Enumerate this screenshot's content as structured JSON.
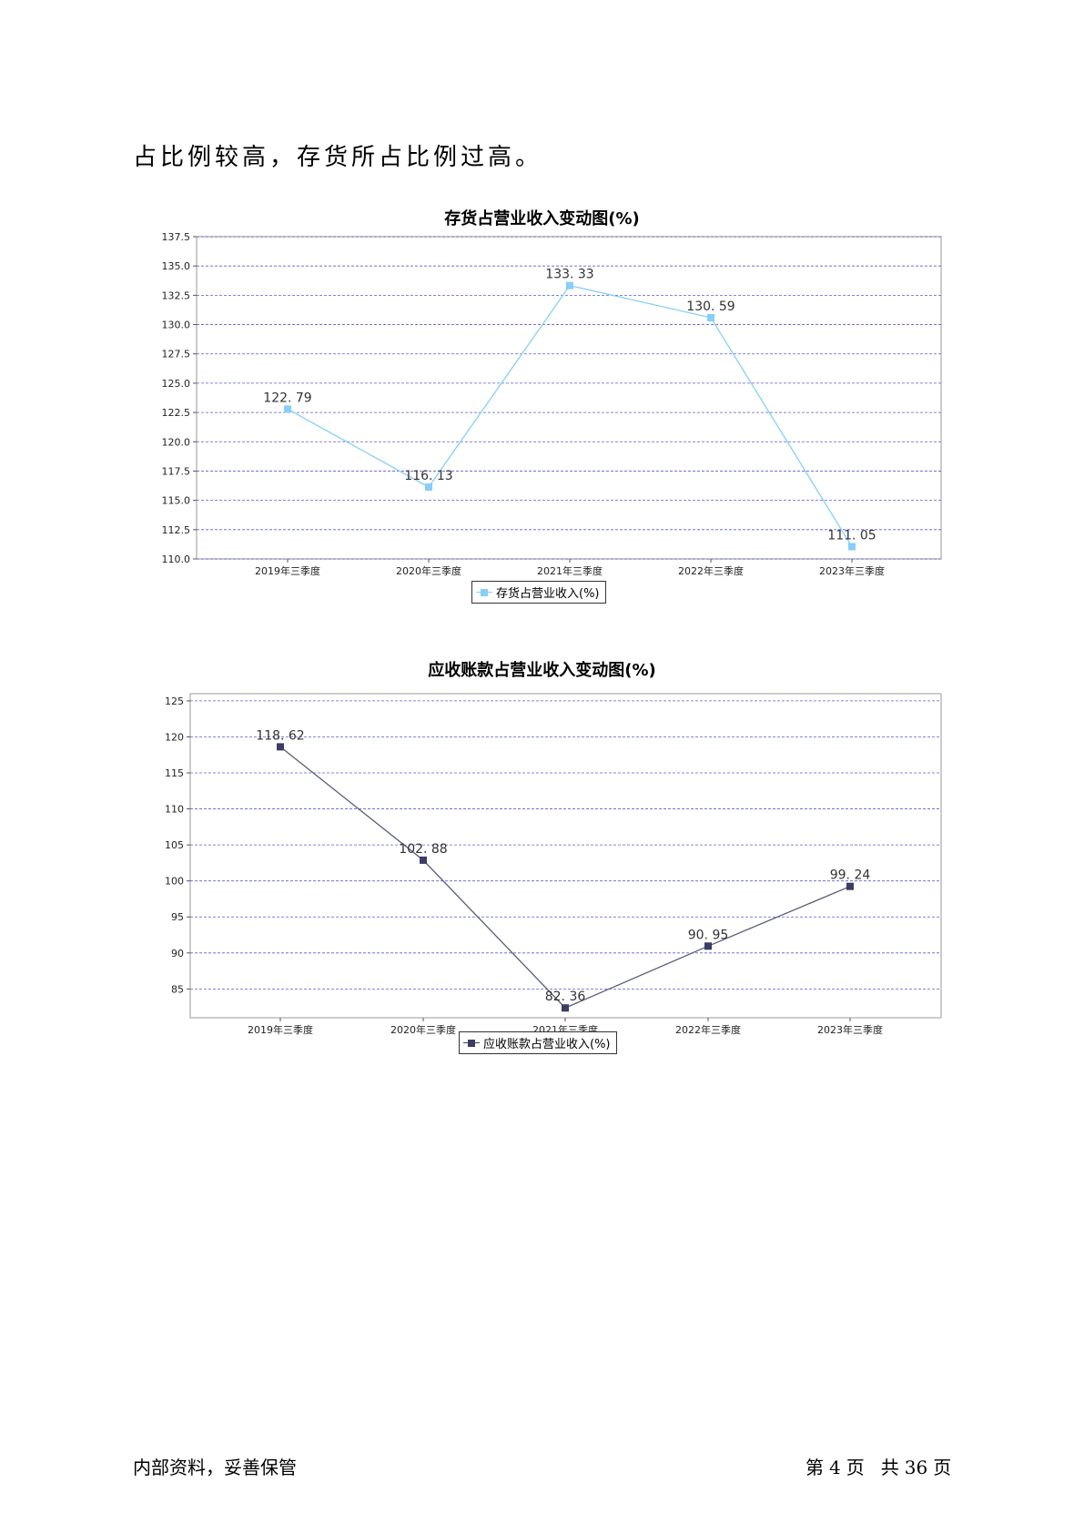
{
  "intro_text": "占比例较高，存货所占比例过高。",
  "charts": [
    {
      "title": "存货占营业收入变动图(%)",
      "legend": "存货占营业收入(%)",
      "color": "#87cefa",
      "line_color": "#87cefa",
      "yticks": [
        "110.0",
        "112.5",
        "115.0",
        "117.5",
        "120.0",
        "122.5",
        "125.0",
        "127.5",
        "130.0",
        "132.5",
        "135.0",
        "137.5"
      ],
      "ylim": [
        110.0,
        137.5
      ],
      "categories": [
        "2019年三季度",
        "2020年三季度",
        "2021年三季度",
        "2022年三季度",
        "2023年三季度"
      ],
      "labels": [
        "122. 79",
        "116. 13",
        "133. 33",
        "130. 59",
        "111. 05"
      ]
    },
    {
      "title": "应收账款占营业收入变动图(%)",
      "legend": "应收账款占营业收入(%)",
      "color": "#3c3c64",
      "line_color": "#5a5a7a",
      "yticks": [
        "85",
        "90",
        "95",
        "100",
        "105",
        "110",
        "115",
        "120",
        "125"
      ],
      "ylim": [
        81,
        126
      ],
      "categories": [
        "2019年三季度",
        "2020年三季度",
        "2021年三季度",
        "2022年三季度",
        "2023年三季度"
      ],
      "labels": [
        "118. 62",
        "102. 88",
        "82. 36",
        "90. 95",
        "99. 24"
      ]
    }
  ],
  "chart_data": [
    {
      "type": "line",
      "title": "存货占营业收入变动图(%)",
      "categories": [
        "2019年三季度",
        "2020年三季度",
        "2021年三季度",
        "2022年三季度",
        "2023年三季度"
      ],
      "series": [
        {
          "name": "存货占营业收入(%)",
          "values": [
            122.79,
            116.13,
            133.33,
            130.59,
            111.05
          ]
        }
      ],
      "ylim": [
        110.0,
        137.5
      ],
      "grid": true,
      "legend": "bottom"
    },
    {
      "type": "line",
      "title": "应收账款占营业收入变动图(%)",
      "categories": [
        "2019年三季度",
        "2020年三季度",
        "2021年三季度",
        "2022年三季度",
        "2023年三季度"
      ],
      "series": [
        {
          "name": "应收账款占营业收入(%)",
          "values": [
            118.62,
            102.88,
            82.36,
            90.95,
            99.24
          ]
        }
      ],
      "ylim": [
        81,
        126
      ],
      "grid": true,
      "legend": "bottom"
    }
  ],
  "footer": {
    "left": "内部资料，妥善保管",
    "page_prefix": "第",
    "page_number": "4",
    "page_unit": "页",
    "total_prefix": "共",
    "total_pages": "36",
    "total_unit": "页"
  }
}
